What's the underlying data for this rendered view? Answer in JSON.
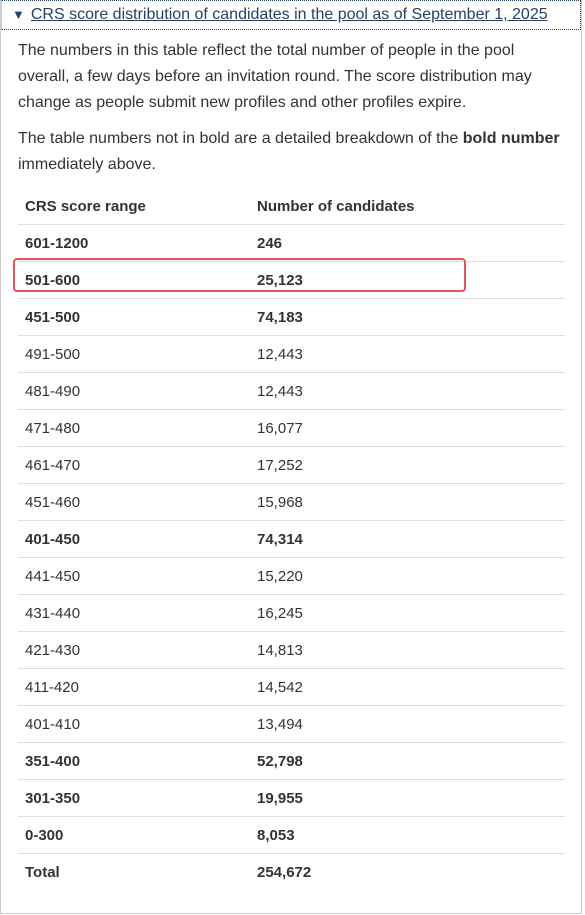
{
  "summary": {
    "marker": "▼",
    "link_text": "CRS score distribution of candidates in the pool as of September 1, 2025"
  },
  "paragraphs": {
    "p1": "The numbers in this table reflect the total number of people in the pool overall, a few days before an invitation round. The score distribution may change as people submit new profiles and other profiles expire.",
    "p2_before": "The table numbers not in bold are a detailed breakdown of the ",
    "p2_bold": "bold number",
    "p2_after": " immediately above."
  },
  "table": {
    "headers": [
      "CRS score range",
      "Number of candidates"
    ],
    "rows": [
      {
        "range": "601-1200",
        "count": "246",
        "bold": true
      },
      {
        "range": "501-600",
        "count": "25,123",
        "bold": true
      },
      {
        "range": "451-500",
        "count": "74,183",
        "bold": true
      },
      {
        "range": "491-500",
        "count": "12,443",
        "bold": false
      },
      {
        "range": "481-490",
        "count": "12,443",
        "bold": false
      },
      {
        "range": "471-480",
        "count": "16,077",
        "bold": false
      },
      {
        "range": "461-470",
        "count": "17,252",
        "bold": false
      },
      {
        "range": "451-460",
        "count": "15,968",
        "bold": false
      },
      {
        "range": "401-450",
        "count": "74,314",
        "bold": true
      },
      {
        "range": "441-450",
        "count": "15,220",
        "bold": false
      },
      {
        "range": "431-440",
        "count": "16,245",
        "bold": false
      },
      {
        "range": "421-430",
        "count": "14,813",
        "bold": false
      },
      {
        "range": "411-420",
        "count": "14,542",
        "bold": false
      },
      {
        "range": "401-410",
        "count": "13,494",
        "bold": false
      },
      {
        "range": "351-400",
        "count": "52,798",
        "bold": true
      },
      {
        "range": "301-350",
        "count": "19,955",
        "bold": true
      },
      {
        "range": "0-300",
        "count": "8,053",
        "bold": true
      },
      {
        "range": "Total",
        "count": "254,672",
        "bold": true
      }
    ]
  },
  "colors": {
    "link": "#284162",
    "highlight": "#e0565b",
    "text": "#333333"
  }
}
